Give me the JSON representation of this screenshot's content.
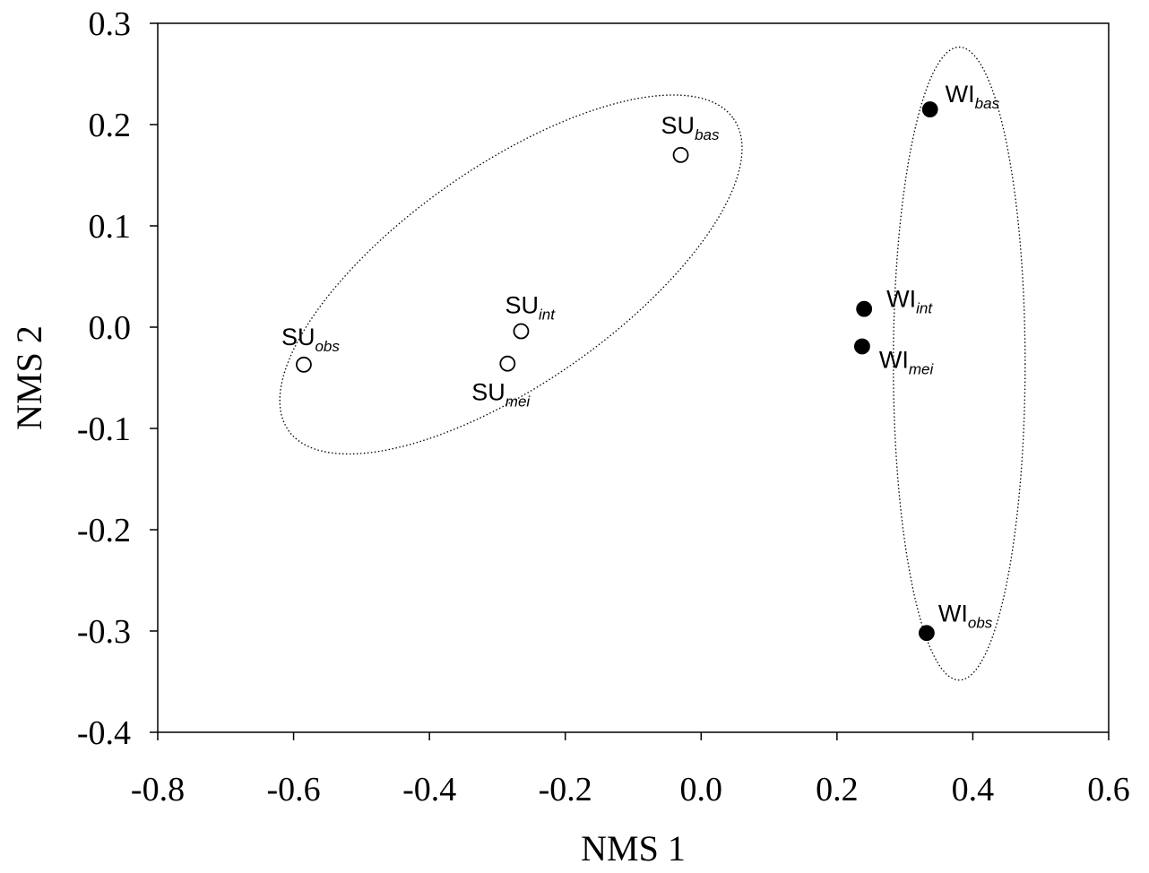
{
  "chart_data": {
    "type": "scatter",
    "xlabel": "NMS 1",
    "ylabel": "NMS 2",
    "xlim": [
      -0.8,
      0.6
    ],
    "ylim": [
      -0.4,
      0.3
    ],
    "x_ticks": [
      "-0.8",
      "-0.6",
      "-0.4",
      "-0.2",
      "0.0",
      "0.2",
      "0.4",
      "0.6"
    ],
    "y_ticks": [
      "0.3",
      "0.2",
      "0.1",
      "0.0",
      "-0.1",
      "-0.2",
      "-0.3",
      "-0.4"
    ],
    "grid": false,
    "series": [
      {
        "marker": "open-circle",
        "points": [
          {
            "base": "SU",
            "sub": "bas",
            "x": -0.03,
            "y": 0.17
          },
          {
            "base": "SU",
            "sub": "int",
            "x": -0.265,
            "y": -0.004
          },
          {
            "base": "SU",
            "sub": "mei",
            "x": -0.285,
            "y": -0.036
          },
          {
            "base": "SU",
            "sub": "obs",
            "x": -0.585,
            "y": -0.037
          }
        ]
      },
      {
        "marker": "filled-circle",
        "points": [
          {
            "base": "WI",
            "sub": "bas",
            "x": 0.337,
            "y": 0.215
          },
          {
            "base": "WI",
            "sub": "int",
            "x": 0.24,
            "y": 0.018
          },
          {
            "base": "WI",
            "sub": "mei",
            "x": 0.237,
            "y": -0.019
          },
          {
            "base": "WI",
            "sub": "obs",
            "x": 0.332,
            "y": -0.302
          }
        ]
      }
    ],
    "groupings": [
      {
        "shape": "dotted-ellipse",
        "cx": -0.28,
        "cy": 0.052,
        "rx": 0.4,
        "ry": 0.16,
        "rotation_deg": -35
      },
      {
        "shape": "dotted-ellipse",
        "cx": 0.38,
        "cy": -0.036,
        "rx": 0.097,
        "ry": 0.3125,
        "rotation_deg": 0
      }
    ]
  }
}
